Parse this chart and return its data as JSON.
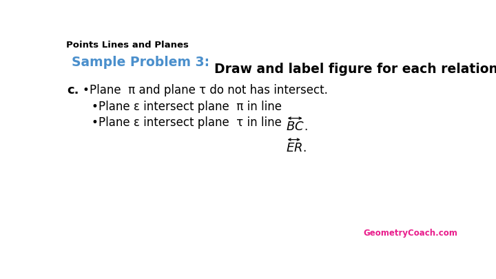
{
  "title": "Points Lines and Planes",
  "title_color": "#000000",
  "title_fontsize": 9.5,
  "subtitle_blue": "Sample Problem 3: ",
  "subtitle_black": "Draw and label figure for each relationship.",
  "subtitle_blue_color": "#4a8fcc",
  "subtitle_black_color": "#000000",
  "subtitle_fontsize": 13.5,
  "background_color": "#ffffff",
  "label_c": "c.",
  "label_c_fontsize": 13,
  "bullet1": "Plane  π and plane τ do not has intersect.",
  "bullet2_pre": "Plane ε intersect plane  π in line ",
  "bullet2_line": "BC",
  "bullet3_pre": "Plane ε intersect plane  τ in line ",
  "bullet3_line": "ER",
  "text_color": "#000000",
  "text_fontsize": 12,
  "watermark": "GeometryCoach.com",
  "watermark_color": "#e91e8c"
}
